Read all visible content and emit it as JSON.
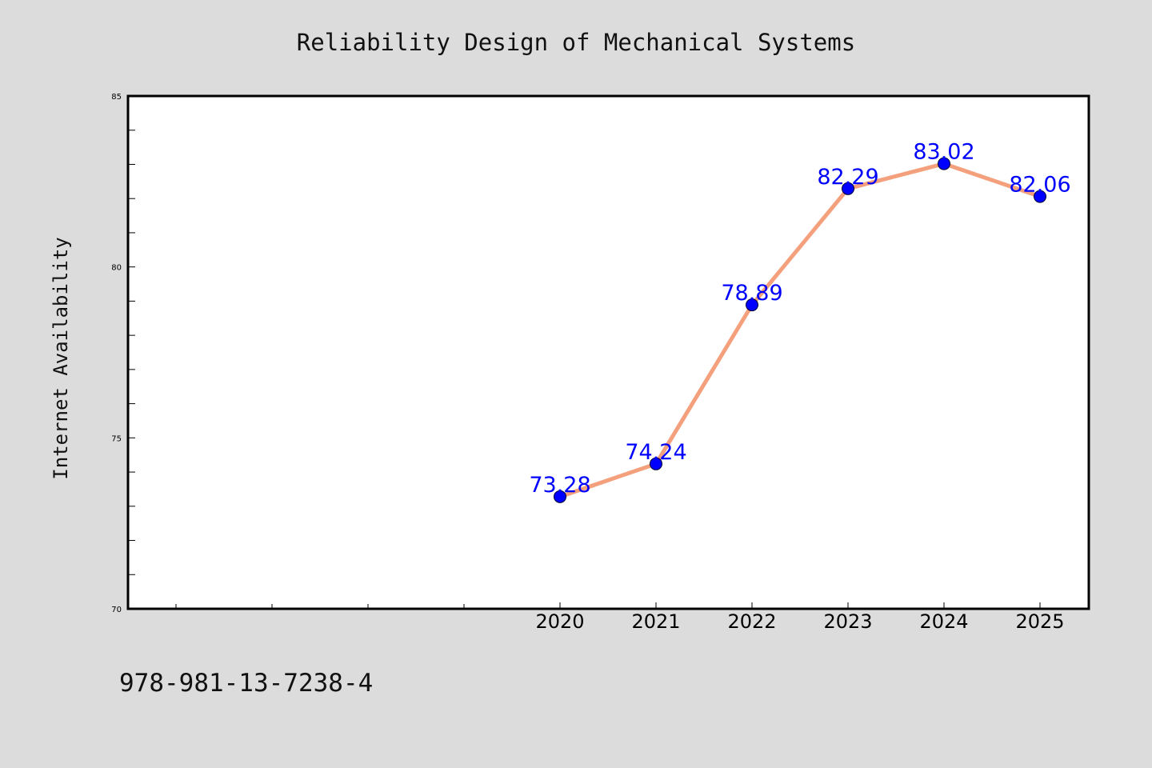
{
  "chart_data": {
    "type": "line",
    "title": "Reliability Design of Mechanical Systems",
    "xlabel": "",
    "ylabel": "Internet Availability",
    "categories": [
      "2020",
      "2021",
      "2022",
      "2023",
      "2024",
      "2025"
    ],
    "values": [
      73.28,
      74.24,
      78.89,
      82.29,
      83.02,
      82.06
    ],
    "value_labels": [
      "73.28",
      "74.24",
      "78.89",
      "82.29",
      "83.02",
      "82.06"
    ],
    "ylim": [
      70,
      85
    ],
    "yticks": [
      "70",
      "75",
      "80",
      "85"
    ],
    "grid": false,
    "legend": "none",
    "colors": {
      "line": "#f4a07c",
      "marker": "#0000ff",
      "data_label": "#0000ff",
      "background": "#dcdcdc",
      "plot_background": "#ffffff"
    }
  },
  "footer": {
    "isbn": "978-981-13-7238-4"
  }
}
